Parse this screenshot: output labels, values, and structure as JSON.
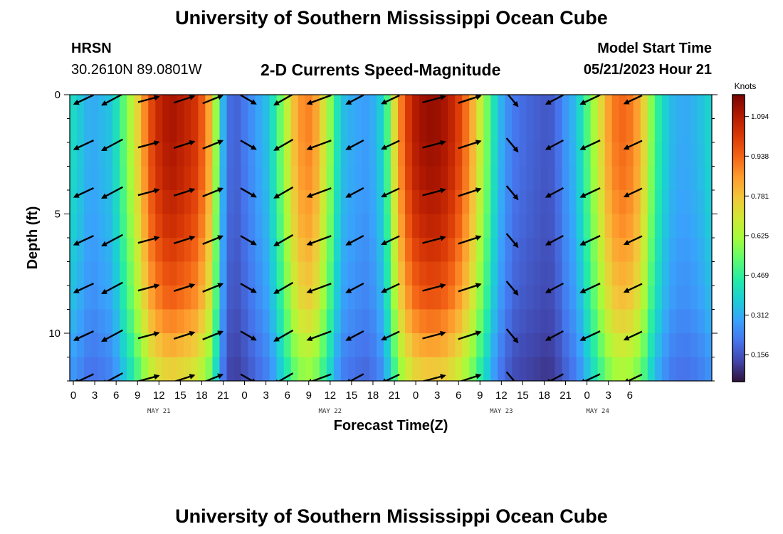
{
  "header": {
    "title": "University of Southern Mississippi Ocean Cube",
    "station": "HRSN",
    "coords": "30.2610N  89.0801W",
    "plot_title": "2-D Currents Speed-Magnitude",
    "model_label": "Model Start Time",
    "model_time": "05/21/2023 Hour 21"
  },
  "footer": {
    "title": "University of Southern Mississippi Ocean Cube"
  },
  "colorbar": {
    "unit": "Knots",
    "ticks": [
      1.094,
      0.938,
      0.781,
      0.625,
      0.469,
      0.312,
      0.156
    ],
    "min": 0.05,
    "max": 1.18
  },
  "chart_data": {
    "type": "heatmap",
    "title": "2-D Currents Speed-Magnitude",
    "xlabel": "Forecast Time(Z)",
    "ylabel": "Depth (ft)",
    "ylim": [
      0,
      12
    ],
    "y_ticks": [
      "0",
      "5",
      "10"
    ],
    "x_ticks": [
      "0",
      "3",
      "6",
      "9",
      "12",
      "15",
      "18",
      "21",
      "0",
      "3",
      "6",
      "9",
      "12",
      "15",
      "18",
      "21",
      "0",
      "3",
      "6",
      "9",
      "12",
      "15",
      "18",
      "21",
      "0",
      "3",
      "6"
    ],
    "day_labels": [
      {
        "label": "MAY 21",
        "index": 4
      },
      {
        "label": "MAY 22",
        "index": 12
      },
      {
        "label": "MAY 23",
        "index": 20
      },
      {
        "label": "MAY 24",
        "index": 24.5
      }
    ],
    "colors": [
      "#30123b",
      "#4145ab",
      "#4675ed",
      "#39a2fc",
      "#1bcfd4",
      "#24eca6",
      "#61fc6c",
      "#a4fc3b",
      "#d1e834",
      "#f3c63a",
      "#fe9b2d",
      "#f36315",
      "#d93806",
      "#b11901",
      "#7a0402"
    ],
    "speed_profile": {
      "hours": [
        0,
        3,
        6,
        9,
        11,
        12,
        14,
        16,
        18,
        20,
        21,
        22,
        23,
        24,
        26,
        28,
        30,
        32,
        34,
        36,
        38,
        40,
        42,
        44,
        45,
        46,
        48,
        50,
        52,
        54,
        56,
        58,
        60,
        62,
        64,
        66,
        67,
        68,
        69,
        70,
        71,
        72,
        74,
        76,
        78,
        80,
        82,
        84,
        86,
        88,
        90
      ],
      "speed": [
        0.42,
        0.3,
        0.36,
        0.68,
        0.95,
        1.04,
        1.12,
        1.08,
        1.02,
        0.78,
        0.42,
        0.22,
        0.17,
        0.2,
        0.28,
        0.36,
        0.6,
        0.86,
        0.9,
        0.66,
        0.35,
        0.3,
        0.28,
        0.4,
        0.6,
        0.85,
        1.08,
        1.14,
        1.13,
        1.05,
        0.88,
        0.62,
        0.35,
        0.22,
        0.19,
        0.17,
        0.16,
        0.18,
        0.24,
        0.3,
        0.34,
        0.45,
        0.68,
        0.9,
        0.94,
        0.82,
        0.5,
        0.34,
        0.3,
        0.33,
        0.4
      ]
    },
    "depth_factor": [
      1.0,
      1.0,
      0.99,
      0.98,
      0.96,
      0.94,
      0.91,
      0.88,
      0.85,
      0.8,
      0.74,
      0.68
    ],
    "vectors": {
      "hours": [
        2,
        6,
        11,
        16,
        20,
        25,
        30,
        35,
        40,
        45,
        51,
        56,
        62,
        68,
        73,
        79
      ],
      "depths": [
        0.2,
        2.1,
        4.1,
        6.1,
        8.1,
        10.1,
        11.9
      ],
      "angles": [
        205,
        208,
        15,
        18,
        22,
        330,
        210,
        200,
        208,
        205,
        15,
        18,
        -50,
        208,
        205,
        205
      ],
      "lengths": [
        0.55,
        0.6,
        0.55,
        0.55,
        0.55,
        0.45,
        0.55,
        0.65,
        0.5,
        0.5,
        0.6,
        0.6,
        0.45,
        0.5,
        0.55,
        0.5
      ]
    }
  }
}
